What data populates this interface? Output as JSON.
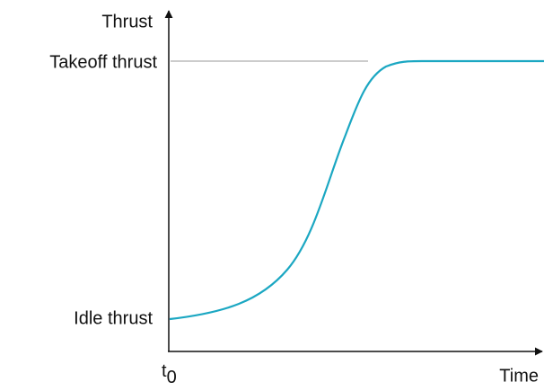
{
  "diagram": {
    "y_axis_label": "Thrust",
    "x_axis_label": "Time",
    "levels": {
      "top": "Takeoff thrust",
      "bottom": "Idle thrust"
    },
    "start_label": {
      "base": "t",
      "subscript": "0"
    }
  }
}
